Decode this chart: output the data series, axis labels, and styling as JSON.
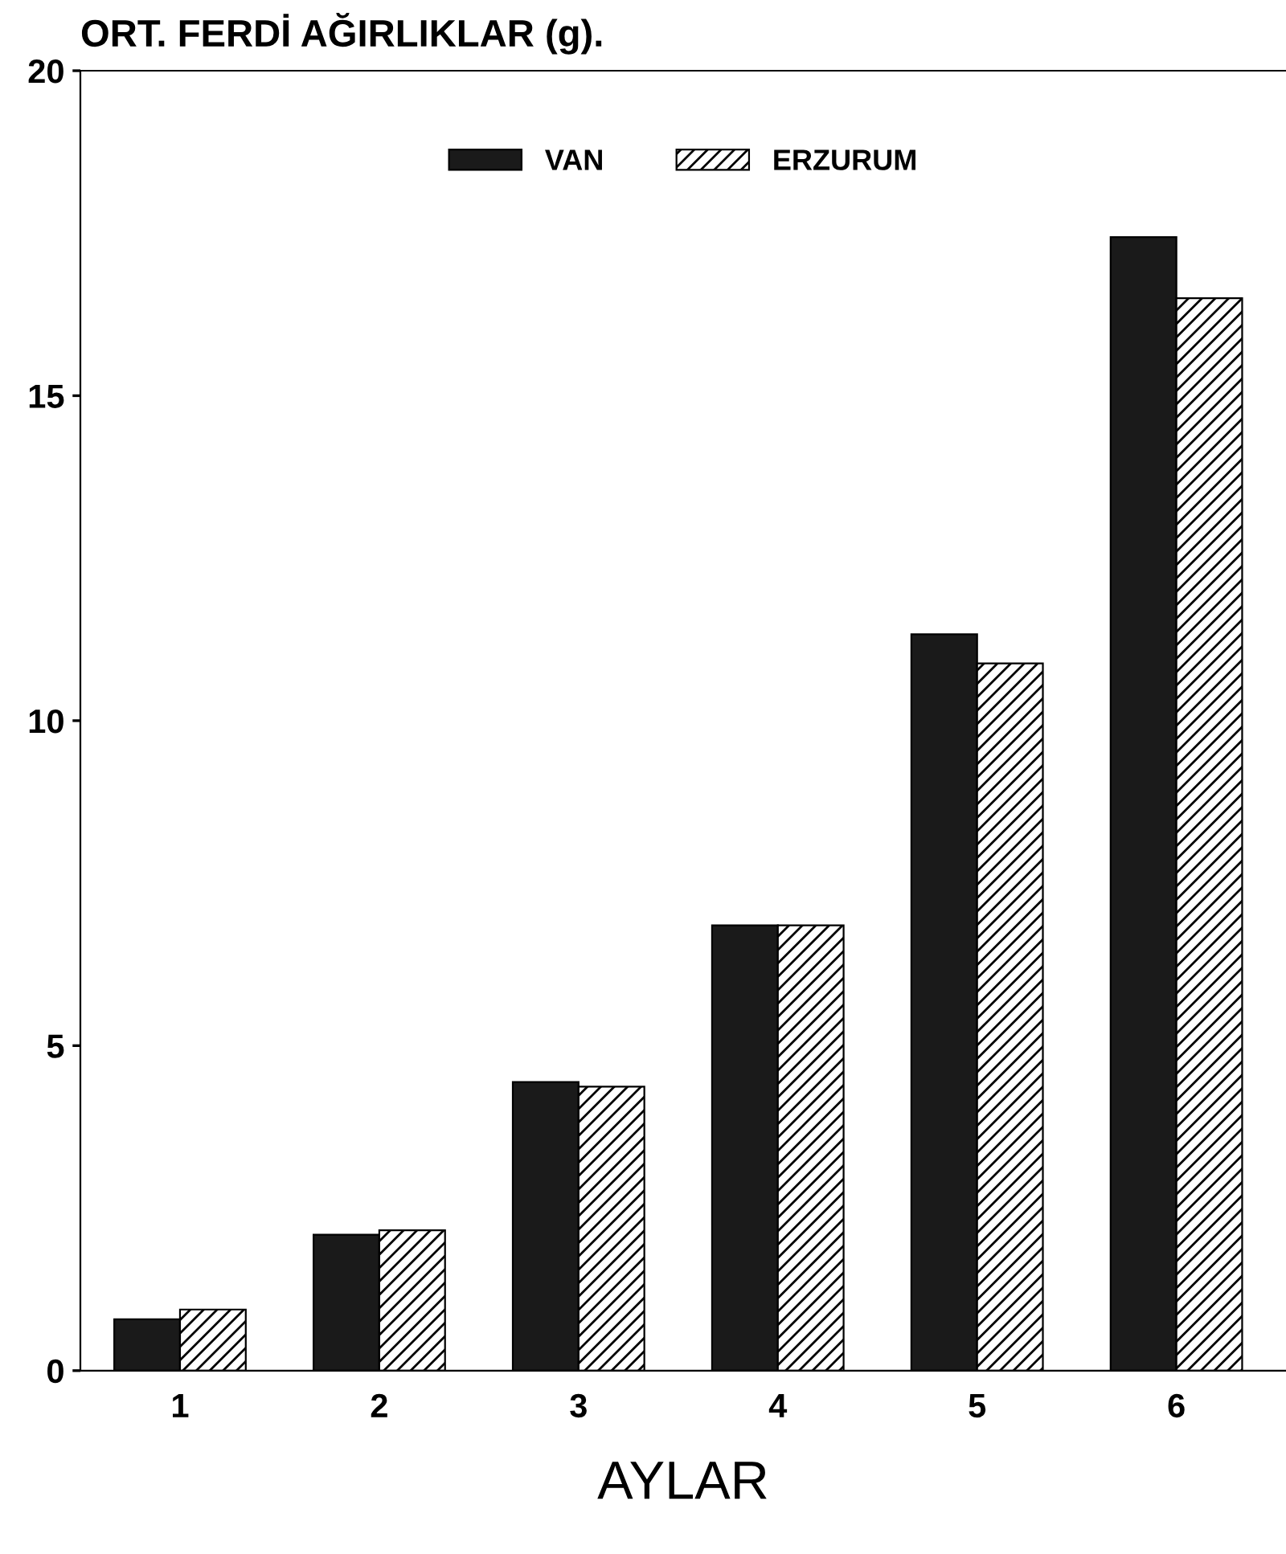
{
  "chart_data": {
    "type": "bar",
    "title": "ORT. FERDİ AĞIRLIKLAR (g).",
    "xlabel": "AYLAR",
    "categories": [
      "1",
      "2",
      "3",
      "4",
      "5",
      "6"
    ],
    "series": [
      {
        "name": "VAN",
        "color": "#1a1a1a",
        "values": [
          0.79,
          2.09,
          4.44,
          6.85,
          11.33,
          17.44
        ]
      },
      {
        "name": "ERZURUM",
        "color": "#000000",
        "values": [
          0.94,
          2.16,
          4.37,
          6.85,
          10.88,
          16.5
        ]
      }
    ],
    "ylim": [
      0,
      20
    ],
    "yticks": [
      0,
      5,
      10,
      15,
      20
    ],
    "grid": false,
    "legend": "top"
  }
}
